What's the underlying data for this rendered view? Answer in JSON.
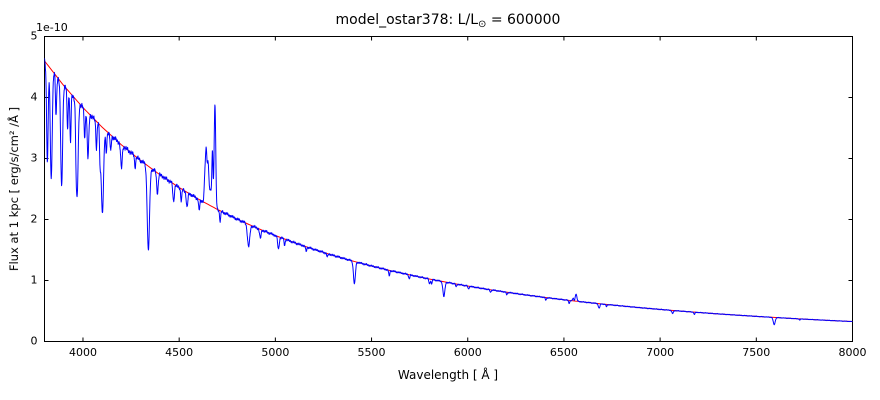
{
  "figure": {
    "title": {
      "prefix": "model_ostar378: L/L",
      "subscript": "⊙",
      "suffix": " = 600000"
    },
    "xlabel": "Wavelength [ Å ]",
    "ylabel": "Flux at 1 kpc [ erg/s/cm² /Å ]",
    "offset_label": "1e-10"
  },
  "colors": {
    "spectrum": "#0000ff",
    "continuum_fit": "#ff0000",
    "axis": "#000000",
    "background": "#ffffff"
  },
  "chart_data": {
    "type": "line",
    "title": "model_ostar378: L/L⊙ = 600000",
    "xlabel": "Wavelength [ Å ]",
    "ylabel": "Flux at 1 kpc [ erg/s/cm² /Å ]",
    "y_offset_text": "1e-10",
    "xlim": [
      3800,
      8000
    ],
    "ylim": [
      0,
      5
    ],
    "xticks": [
      4000,
      4500,
      5000,
      5500,
      6000,
      6500,
      7000,
      7500,
      8000
    ],
    "yticks": [
      0,
      1,
      2,
      3,
      4,
      5
    ],
    "grid": false,
    "legend": null,
    "series": [
      {
        "name": "spectrum",
        "color": "#0000ff"
      },
      {
        "name": "continuum_fit",
        "color": "#ff0000"
      }
    ],
    "continuum": {
      "x_start": 3800,
      "x_step": 100,
      "values": [
        4.6,
        4.195,
        3.834,
        3.512,
        3.224,
        2.966,
        2.733,
        2.524,
        2.334,
        2.163,
        2.007,
        1.866,
        1.737,
        1.619,
        1.511,
        1.412,
        1.321,
        1.238,
        1.161,
        1.091,
        1.025,
        0.965,
        0.909,
        0.857,
        0.809,
        0.764,
        0.723,
        0.684,
        0.648,
        0.614,
        0.583,
        0.553,
        0.526,
        0.5,
        0.476,
        0.453,
        0.432,
        0.412,
        0.393,
        0.375,
        0.358,
        0.342,
        0.327
      ]
    },
    "absorption_lines": [
      [
        3815,
        0.35,
        4
      ],
      [
        3835,
        0.4,
        5
      ],
      [
        3860,
        0.15,
        3
      ],
      [
        3889,
        0.4,
        5
      ],
      [
        3920,
        0.15,
        3
      ],
      [
        3935,
        0.2,
        3
      ],
      [
        3964,
        0.12,
        3
      ],
      [
        3970,
        0.38,
        5
      ],
      [
        4009,
        0.12,
        3
      ],
      [
        4026,
        0.2,
        4
      ],
      [
        4070,
        0.12,
        3
      ],
      [
        4089,
        0.15,
        3
      ],
      [
        4101,
        0.4,
        6
      ],
      [
        4121,
        0.1,
        3
      ],
      [
        4144,
        0.08,
        3
      ],
      [
        4200,
        0.12,
        4
      ],
      [
        4271,
        0.06,
        3
      ],
      [
        4340,
        0.48,
        6
      ],
      [
        4387,
        0.12,
        4
      ],
      [
        4471,
        0.11,
        4
      ],
      [
        4511,
        0.08,
        3
      ],
      [
        4541,
        0.1,
        4
      ],
      [
        4604,
        0.08,
        3
      ],
      [
        4713,
        0.08,
        3
      ],
      [
        4861,
        0.19,
        6
      ],
      [
        4922,
        0.08,
        4
      ],
      [
        5016,
        0.12,
        4
      ],
      [
        5048,
        0.06,
        3
      ],
      [
        5160,
        0.05,
        3
      ],
      [
        5270,
        0.04,
        3
      ],
      [
        5411,
        0.28,
        5
      ],
      [
        5592,
        0.08,
        3
      ],
      [
        5696,
        0.06,
        3
      ],
      [
        5801,
        0.08,
        3
      ],
      [
        5812,
        0.07,
        3
      ],
      [
        5876,
        0.25,
        5
      ],
      [
        5940,
        0.05,
        3
      ],
      [
        6004,
        0.05,
        3
      ],
      [
        6118,
        0.05,
        3
      ],
      [
        6203,
        0.05,
        3
      ],
      [
        6406,
        0.06,
        3
      ],
      [
        6527,
        0.07,
        3
      ],
      [
        6683,
        0.12,
        4
      ],
      [
        6721,
        0.06,
        3
      ],
      [
        7065,
        0.1,
        4
      ],
      [
        7178,
        0.08,
        3
      ],
      [
        7593,
        0.3,
        5
      ],
      [
        7726,
        0.05,
        3
      ]
    ],
    "emission_lines": [
      [
        4634,
        0.45,
        3.5
      ],
      [
        4641,
        0.8,
        3.5
      ],
      [
        4650,
        0.55,
        3.5
      ],
      [
        4660,
        0.25,
        10
      ],
      [
        4673,
        0.8,
        3
      ],
      [
        4686,
        1.7,
        4
      ],
      [
        6548,
        0.04,
        3
      ],
      [
        6563,
        0.12,
        4
      ]
    ]
  }
}
